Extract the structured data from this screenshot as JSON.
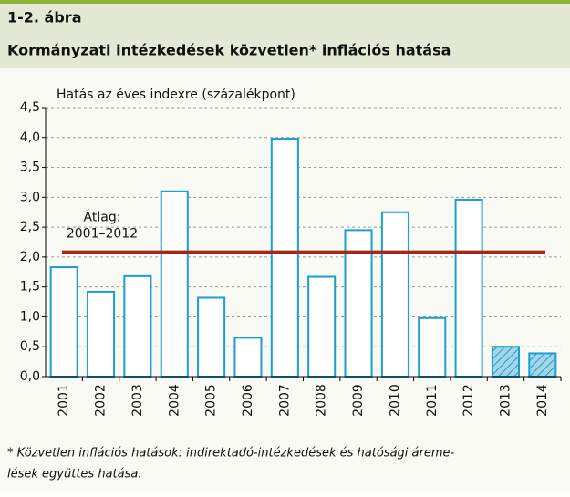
{
  "chart_data": {
    "type": "bar",
    "figure_label": "1-2. ábra",
    "title": "Kormányzati intézkedések közvetlen* inflációs hatása",
    "y_axis_label": "Hatás az éves indexre (százalékpont)",
    "categories": [
      "2001",
      "2002",
      "2003",
      "2004",
      "2005",
      "2006",
      "2007",
      "2008",
      "2009",
      "2010",
      "2011",
      "2012",
      "2013",
      "2014"
    ],
    "values": [
      1.83,
      1.42,
      1.68,
      3.1,
      1.32,
      0.65,
      3.98,
      1.67,
      2.45,
      2.75,
      0.98,
      2.96,
      0.5,
      0.39
    ],
    "hatched": [
      false,
      false,
      false,
      false,
      false,
      false,
      false,
      false,
      false,
      false,
      false,
      false,
      true,
      true
    ],
    "color": "#1a9fd0",
    "hatch_fill": "#9ed8ef",
    "average": {
      "value": 2.08,
      "label": [
        "Átlag:",
        "2001–2012"
      ],
      "color": "#a3271b"
    },
    "ylim": [
      0,
      4.5
    ],
    "yticks": [
      {
        "value": 0,
        "label": "0,0"
      },
      {
        "value": 0.5,
        "label": "0,5"
      },
      {
        "value": 1,
        "label": "1,0"
      },
      {
        "value": 1.5,
        "label": "1,5"
      },
      {
        "value": 2,
        "label": "2,0"
      },
      {
        "value": 2.5,
        "label": "2,5"
      },
      {
        "value": 3,
        "label": "3,0"
      },
      {
        "value": 3.5,
        "label": "3,5"
      },
      {
        "value": 4,
        "label": "4,0"
      },
      {
        "value": 4.5,
        "label": "4,5"
      }
    ],
    "grid": true,
    "footnote": [
      "* Közvetlen inflációs hatások: indirektadó-intézkedések és hatósági áreme-",
      "lések együttes hatása."
    ]
  }
}
